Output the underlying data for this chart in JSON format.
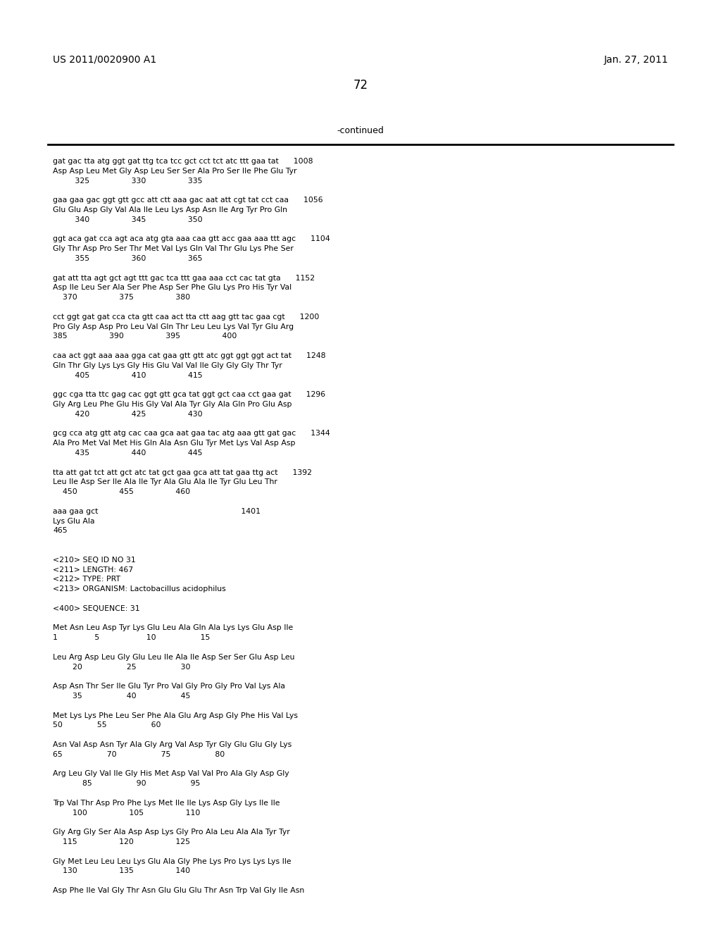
{
  "header_left": "US 2011/0020900 A1",
  "header_right": "Jan. 27, 2011",
  "page_number": "72",
  "continued_label": "-continued",
  "background_color": "#ffffff",
  "text_color": "#000000",
  "content_lines": [
    "gat gac tta atg ggt gat ttg tca tcc gct cct tct atc ttt gaa tat      1008",
    "Asp Asp Leu Met Gly Asp Leu Ser Ser Ala Pro Ser Ile Phe Glu Tyr",
    "         325                 330                 335",
    "",
    "gaa gaa gac ggt gtt gcc att ctt aaa gac aat att cgt tat cct caa      1056",
    "Glu Glu Asp Gly Val Ala Ile Leu Lys Asp Asn Ile Arg Tyr Pro Gln",
    "         340                 345                 350",
    "",
    "ggt aca gat cca agt aca atg gta aaa caa gtt acc gaa aaa ttt agc      1104",
    "Gly Thr Asp Pro Ser Thr Met Val Lys Gln Val Thr Glu Lys Phe Ser",
    "         355                 360                 365",
    "",
    "gat att tta agt gct agt ttt gac tca ttt gaa aaa cct cac tat gta      1152",
    "Asp Ile Leu Ser Ala Ser Phe Asp Ser Phe Glu Lys Pro His Tyr Val",
    "    370                 375                 380",
    "",
    "cct ggt gat gat cca cta gtt caa act tta ctt aag gtt tac gaa cgt      1200",
    "Pro Gly Asp Asp Pro Leu Val Gln Thr Leu Leu Lys Val Tyr Glu Arg",
    "385                 390                 395                 400",
    "",
    "caa act ggt aaa aaa gga cat gaa gtt gtt atc ggt ggt ggt act tat      1248",
    "Gln Thr Gly Lys Lys Gly His Glu Val Val Ile Gly Gly Gly Thr Tyr",
    "         405                 410                 415",
    "",
    "ggc cga tta ttc gag cac ggt gtt gca tat ggt gct caa cct gaa gat      1296",
    "Gly Arg Leu Phe Glu His Gly Val Ala Tyr Gly Ala Gln Pro Glu Asp",
    "         420                 425                 430",
    "",
    "gcg cca atg gtt atg cac caa gca aat gaa tac atg aaa gtt gat gac      1344",
    "Ala Pro Met Val Met His Gln Ala Asn Glu Tyr Met Lys Val Asp Asp",
    "         435                 440                 445",
    "",
    "tta att gat tct att gct atc tat gct gaa gca att tat gaa ttg act      1392",
    "Leu Ile Asp Ser Ile Ala Ile Tyr Ala Glu Ala Ile Tyr Glu Leu Thr",
    "    450                 455                 460",
    "",
    "aaa gaa gct                                                          1401",
    "Lys Glu Ala",
    "465",
    "",
    "",
    "<210> SEQ ID NO 31",
    "<211> LENGTH: 467",
    "<212> TYPE: PRT",
    "<213> ORGANISM: Lactobacillus acidophilus",
    "",
    "<400> SEQUENCE: 31",
    "",
    "Met Asn Leu Asp Tyr Lys Glu Leu Ala Gln Ala Lys Lys Glu Asp Ile",
    "1               5                   10                  15",
    "",
    "Leu Arg Asp Leu Gly Glu Leu Ile Ala Ile Asp Ser Ser Glu Asp Leu",
    "        20                  25                  30",
    "",
    "Asp Asn Thr Ser Ile Glu Tyr Pro Val Gly Pro Gly Pro Val Lys Ala",
    "        35                  40                  45",
    "",
    "Met Lys Lys Phe Leu Ser Phe Ala Glu Arg Asp Gly Phe His Val Lys",
    "50              55                  60",
    "",
    "Asn Val Asp Asn Tyr Ala Gly Arg Val Asp Tyr Gly Glu Glu Gly Lys",
    "65                  70                  75                  80",
    "",
    "Arg Leu Gly Val Ile Gly His Met Asp Val Val Pro Ala Gly Asp Gly",
    "            85                  90                  95",
    "",
    "Trp Val Thr Asp Pro Phe Lys Met Ile Ile Lys Asp Gly Lys Ile Ile",
    "        100                 105                 110",
    "",
    "Gly Arg Gly Ser Ala Asp Asp Lys Gly Pro Ala Leu Ala Ala Tyr Tyr",
    "    115                 120                 125",
    "",
    "Gly Met Leu Leu Leu Lys Glu Ala Gly Phe Lys Pro Lys Lys Lys Ile",
    "    130                 135                 140",
    "",
    "Asp Phe Ile Val Gly Thr Asn Glu Glu Glu Thr Asn Trp Val Gly Ile Asn"
  ]
}
